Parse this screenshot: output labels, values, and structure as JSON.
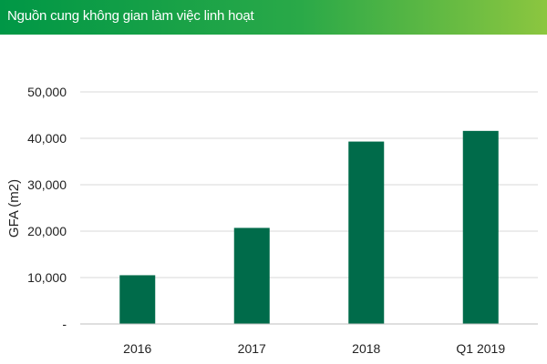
{
  "header": {
    "title": "Nguồn cung không gian làm việc linh hoạt"
  },
  "colors": {
    "header_start": "#009746",
    "header_end": "#8cc63f",
    "bar": "#006b4a",
    "grid": "#d9d9d9"
  },
  "chart_data": {
    "type": "bar",
    "title": "",
    "xlabel": "",
    "ylabel": "GFA (m2)",
    "categories": [
      "2016",
      "2017",
      "2018",
      "Q1 2019"
    ],
    "values": [
      10500,
      20700,
      39300,
      41600
    ],
    "ylim": [
      0,
      50000
    ],
    "yticks": [
      0,
      10000,
      20000,
      30000,
      40000,
      50000
    ],
    "ytick_labels": [
      "-",
      "10,000",
      "20,000",
      "30,000",
      "40,000",
      "50,000"
    ],
    "grid": true,
    "legend": "none"
  }
}
